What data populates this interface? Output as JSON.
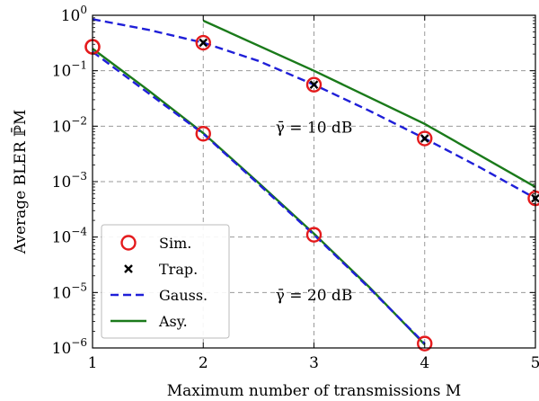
{
  "chart_data": {
    "type": "line",
    "xlabel": "Maximum number of transmissions M",
    "ylabel": "Average BLER ℙ̄M",
    "xlim": [
      1,
      5
    ],
    "ylim": [
      1e-06,
      1
    ],
    "yscale": "log",
    "grid": true,
    "legend_position": "bottom-left",
    "x_ticks": [
      "1",
      "2",
      "3",
      "4",
      "5"
    ],
    "y_ticks": [
      {
        "base": "10",
        "exp": "−6"
      },
      {
        "base": "10",
        "exp": "−5"
      },
      {
        "base": "10",
        "exp": "−4"
      },
      {
        "base": "10",
        "exp": "−3"
      },
      {
        "base": "10",
        "exp": "−2"
      },
      {
        "base": "10",
        "exp": "−1"
      },
      {
        "base": "10",
        "exp": "0"
      }
    ],
    "annotations": [
      {
        "text": "γ̄ = 10 dB",
        "x": 3.0,
        "y": 0.0095
      },
      {
        "text": "γ̄ = 20 dB",
        "x": 3.0,
        "y": 9e-06
      }
    ],
    "series": [
      {
        "name": "Sim.",
        "style": "circle",
        "color": "#e41a1c",
        "group": "10dB",
        "x": [
          1,
          2,
          3,
          4,
          5
        ],
        "y": [
          0.27,
          0.32,
          0.056,
          0.006,
          0.0005
        ]
      },
      {
        "name": "Trap.",
        "style": "x",
        "color": "#000000",
        "group": "10dB",
        "x": [
          2,
          3,
          4,
          5
        ],
        "y": [
          0.32,
          0.056,
          0.006,
          0.0005
        ]
      },
      {
        "name": "Gauss.",
        "style": "dashed",
        "color": "#1f1fd8",
        "group": "10dB",
        "x": [
          1,
          1.5,
          2,
          2.5,
          3,
          3.5,
          4,
          4.5,
          5
        ],
        "y": [
          0.85,
          0.55,
          0.32,
          0.15,
          0.056,
          0.019,
          0.006,
          0.0018,
          0.0005
        ]
      },
      {
        "name": "Asy.",
        "style": "solid",
        "color": "#1a7a1a",
        "group": "10dB",
        "x": [
          2,
          3,
          4,
          5
        ],
        "y": [
          0.8,
          0.1,
          0.011,
          0.0008
        ]
      },
      {
        "name": "Sim.",
        "style": "circle",
        "color": "#e41a1c",
        "group": "20dB",
        "x": [
          1,
          2,
          3,
          4
        ],
        "y": [
          0.27,
          0.0073,
          0.00011,
          1.2e-06
        ]
      },
      {
        "name": "Gauss.",
        "style": "dashed",
        "color": "#1f1fd8",
        "group": "20dB",
        "x": [
          1,
          1.5,
          2,
          2.5,
          3,
          3.5,
          4
        ],
        "y": [
          0.22,
          0.04,
          0.0073,
          0.0009,
          0.00011,
          1.2e-05,
          1.2e-06
        ]
      },
      {
        "name": "Asy.",
        "style": "solid",
        "color": "#1a7a1a",
        "group": "20dB",
        "x": [
          1,
          1.5,
          2,
          2.5,
          3,
          3.5,
          4
        ],
        "y": [
          0.25,
          0.045,
          0.0075,
          0.00095,
          0.000115,
          1.25e-05,
          1.15e-06
        ]
      }
    ],
    "legend": [
      {
        "label": "Sim.",
        "style": "circle",
        "color": "#e41a1c"
      },
      {
        "label": "Trap.",
        "style": "x",
        "color": "#000000"
      },
      {
        "label": "Gauss.",
        "style": "dashed",
        "color": "#1f1fd8"
      },
      {
        "label": "Asy.",
        "style": "solid",
        "color": "#1a7a1a"
      }
    ]
  }
}
